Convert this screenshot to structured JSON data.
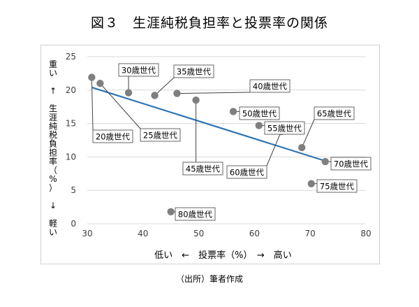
{
  "title": "図３　生涯純税負担率と投票率の関係",
  "source": "（出所）筆者作成",
  "chart_data": {
    "type": "scatter",
    "xlabel": "低い　←　投票率（%）　→　高い",
    "ylabel": "重い　↑　生涯純税負担率（%）　↓　軽い",
    "xlim": [
      30,
      80
    ],
    "ylim": [
      0,
      25
    ],
    "xticks": [
      30,
      40,
      50,
      60,
      70,
      80
    ],
    "yticks": [
      0,
      5,
      10,
      15,
      20,
      25
    ],
    "grid": true,
    "points": [
      {
        "label": "20歳世代",
        "x": 30.8,
        "y": 21.9
      },
      {
        "label": "25歳世代",
        "x": 32.3,
        "y": 21.0
      },
      {
        "label": "30歳世代",
        "x": 37.4,
        "y": 19.6
      },
      {
        "label": "35歳世代",
        "x": 42.1,
        "y": 19.2
      },
      {
        "label": "40歳世代",
        "x": 46.1,
        "y": 19.5
      },
      {
        "label": "45歳世代",
        "x": 49.5,
        "y": 18.5
      },
      {
        "label": "50歳世代",
        "x": 56.2,
        "y": 16.8
      },
      {
        "label": "55歳世代",
        "x": 60.8,
        "y": 14.7
      },
      {
        "label": "60歳世代",
        "x": 64.8,
        "y": 13.8
      },
      {
        "label": "65歳世代",
        "x": 68.5,
        "y": 11.4
      },
      {
        "label": "70歳世代",
        "x": 72.7,
        "y": 9.3
      },
      {
        "label": "75歳世代",
        "x": 70.2,
        "y": 6.0
      },
      {
        "label": "80歳世代",
        "x": 45.0,
        "y": 1.8
      }
    ],
    "trendline": {
      "x": [
        30.8,
        72.7
      ],
      "y": [
        20.4,
        9.4
      ]
    },
    "colors": {
      "point": "#7f7f7f",
      "trend": "#2e75b6",
      "grid": "#d9d9d9"
    }
  }
}
